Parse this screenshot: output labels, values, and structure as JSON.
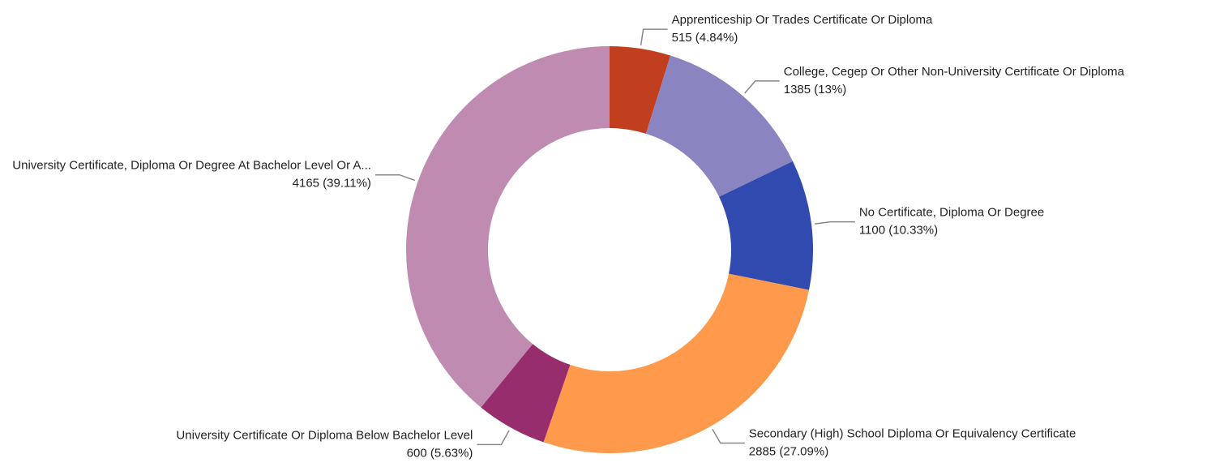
{
  "chart_data": {
    "type": "donut",
    "categories": [
      "Apprenticeship Or Trades Certificate Or Diploma",
      "College, Cegep Or Other Non-University Certificate Or Diploma",
      "No Certificate, Diploma Or Degree",
      "Secondary (High) School Diploma Or Equivalency Certificate",
      "University Certificate Or Diploma Below Bachelor Level",
      "University Certificate, Diploma Or Degree At Bachelor Level Or A..."
    ],
    "values": [
      515,
      1385,
      1100,
      2885,
      600,
      4165
    ],
    "value_labels": [
      "515 (4.84%)",
      "1385 (13%)",
      "1100 (10.33%)",
      "2885 (27.09%)",
      "600 (5.63%)",
      "4165 (39.11%)"
    ],
    "colors": [
      "#c13f1e",
      "#8a84c0",
      "#304ab0",
      "#ff994b",
      "#982d6e",
      "#bf8bb1"
    ]
  }
}
